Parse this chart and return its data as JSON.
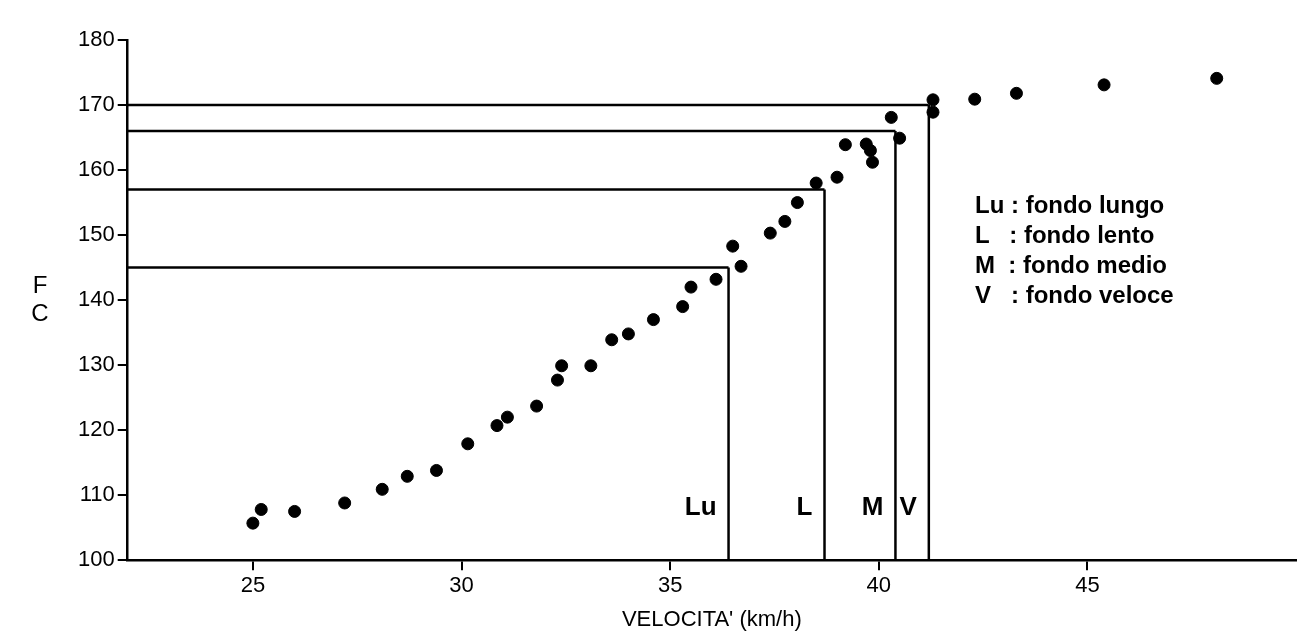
{
  "chart_data": {
    "type": "scatter",
    "xlabel": "VELOCITA' (km/h)",
    "ylabel": "FC",
    "x": [
      25,
      25.2,
      26,
      27.2,
      28.1,
      28.7,
      29.4,
      30.15,
      30.85,
      31.1,
      31.8,
      32.3,
      32.4,
      33.1,
      33.6,
      34,
      34.6,
      35.3,
      35.5,
      36.1,
      36.5,
      36.7,
      37.4,
      37.75,
      38.05,
      38.5,
      39,
      39.2,
      39.7,
      39.8,
      39.85,
      40.3,
      40.5,
      41.3,
      41.3,
      42.3,
      43.3,
      45.4,
      48.1
    ],
    "series": [
      {
        "color": "#000000",
        "values": [
          105.7,
          107.8,
          107.5,
          108.8,
          110.9,
          112.9,
          113.8,
          117.9,
          120.7,
          122,
          123.7,
          127.7,
          129.9,
          129.9,
          133.9,
          134.8,
          137,
          139,
          142,
          143.2,
          148.3,
          145.2,
          150.3,
          152.1,
          155,
          158,
          158.9,
          163.9,
          164,
          163,
          161.2,
          168.1,
          164.9,
          168.9,
          170.8,
          170.9,
          171.8,
          173.1,
          174.1
        ]
      }
    ],
    "xlim": [
      22,
      50
    ],
    "xticks": [
      25,
      30,
      35,
      40,
      45
    ],
    "ylim": [
      100,
      180
    ],
    "yticks": [
      100,
      110,
      120,
      130,
      140,
      150,
      160,
      170,
      180
    ],
    "grid": false,
    "legend": false,
    "marker": "circle",
    "ref_lines": [
      {
        "axis": "y",
        "value": 145,
        "label": null
      },
      {
        "axis": "y",
        "value": 157,
        "label": null
      },
      {
        "axis": "y",
        "value": 166,
        "label": null
      },
      {
        "axis": "y",
        "value": 170,
        "label": null
      },
      {
        "axis": "x",
        "value": 36.4,
        "label": "Lu"
      },
      {
        "axis": "x",
        "value": 38.7,
        "label": "L"
      },
      {
        "axis": "x",
        "value": 40.4,
        "label": "M"
      },
      {
        "axis": "x",
        "value": 41.2,
        "label": "V"
      }
    ],
    "annotations": [
      "Lu : fondo lungo",
      "L   : fondo lento",
      "M  : fondo medio",
      "V   : fondo veloce"
    ]
  }
}
